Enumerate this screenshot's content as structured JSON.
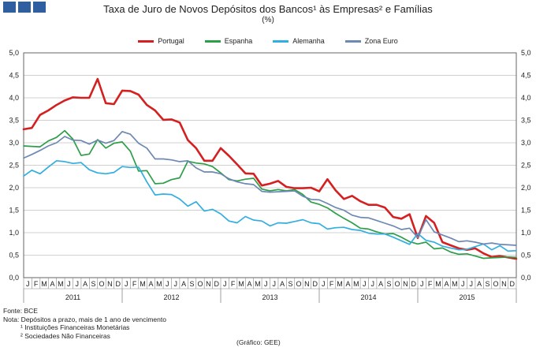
{
  "header": {
    "title": "Taxa de Juro de Novos Depósitos dos Bancos¹ às Empresas² e Famílias",
    "subtitle": "(%)"
  },
  "footer": {
    "source": "Fonte: BCE",
    "note": "Nota: Depósitos a prazo, mais de 1 ano de vencimento",
    "note1": "¹ Instituições Financeiras Monetárias",
    "note2": "² Sociedades Não Financeiras",
    "credit": "(Gráfico: GEE)"
  },
  "colors": {
    "portugal": "#d42020",
    "espanha": "#2e9e48",
    "alemanha": "#33aee0",
    "zona_euro": "#6d88b3",
    "grid": "#d0d0d0",
    "axis": "#666666"
  },
  "chart_data": {
    "type": "line",
    "title": "Taxa de Juro de Novos Depósitos dos Bancos¹ às Empresas² e Famílias",
    "ylim": [
      0,
      5
    ],
    "yticks": [
      "0,0",
      "0,5",
      "1,0",
      "1,5",
      "2,0",
      "2,5",
      "3,0",
      "3,5",
      "4,0",
      "4,5",
      "5,0"
    ],
    "grid": true,
    "legend": "top",
    "month_labels": [
      "J",
      "F",
      "M",
      "A",
      "M",
      "J",
      "J",
      "A",
      "S",
      "O",
      "N",
      "D"
    ],
    "years": [
      "2011",
      "2012",
      "2013",
      "2014",
      "2015"
    ],
    "series": [
      {
        "name": "Portugal",
        "color_key": "portugal",
        "values": [
          3.3,
          3.33,
          3.62,
          3.72,
          3.84,
          3.94,
          4.01,
          4.0,
          4.0,
          4.42,
          3.88,
          3.86,
          4.16,
          4.15,
          4.07,
          3.84,
          3.72,
          3.51,
          3.52,
          3.45,
          3.06,
          2.88,
          2.6,
          2.6,
          2.88,
          2.71,
          2.52,
          2.32,
          2.31,
          2.05,
          2.09,
          2.15,
          2.02,
          1.99,
          1.99,
          2.0,
          1.92,
          2.19,
          1.94,
          1.75,
          1.82,
          1.7,
          1.62,
          1.62,
          1.56,
          1.35,
          1.31,
          1.41,
          0.88,
          1.37,
          1.22,
          0.79,
          0.72,
          0.65,
          0.62,
          0.65,
          0.54,
          0.46,
          0.48,
          0.45,
          0.42
        ]
      },
      {
        "name": "Espanha",
        "color_key": "espanha",
        "values": [
          2.93,
          2.92,
          2.91,
          3.04,
          3.12,
          3.27,
          3.08,
          2.72,
          2.75,
          3.07,
          2.88,
          2.99,
          3.02,
          2.81,
          2.37,
          2.38,
          2.09,
          2.1,
          2.18,
          2.22,
          2.59,
          2.55,
          2.53,
          2.47,
          2.33,
          2.18,
          2.15,
          2.19,
          2.21,
          1.97,
          1.93,
          1.96,
          1.93,
          1.96,
          1.85,
          1.68,
          1.63,
          1.55,
          1.43,
          1.32,
          1.22,
          1.1,
          1.08,
          1.02,
          0.97,
          0.98,
          0.9,
          0.8,
          0.75,
          0.79,
          0.64,
          0.66,
          0.57,
          0.52,
          0.53,
          0.48,
          0.43,
          0.44,
          0.45,
          0.46,
          0.45
        ]
      },
      {
        "name": "Alemanha",
        "color_key": "alemanha",
        "values": [
          2.26,
          2.39,
          2.31,
          2.46,
          2.6,
          2.58,
          2.54,
          2.56,
          2.4,
          2.33,
          2.31,
          2.34,
          2.47,
          2.45,
          2.46,
          2.13,
          1.84,
          1.86,
          1.85,
          1.75,
          1.59,
          1.69,
          1.48,
          1.52,
          1.42,
          1.26,
          1.22,
          1.36,
          1.28,
          1.26,
          1.15,
          1.22,
          1.21,
          1.25,
          1.29,
          1.22,
          1.2,
          1.08,
          1.11,
          1.12,
          1.07,
          1.05,
          0.99,
          0.97,
          0.97,
          0.9,
          0.82,
          0.74,
          0.98,
          0.83,
          0.79,
          0.7,
          0.66,
          0.62,
          0.63,
          0.69,
          0.75,
          0.62,
          0.71,
          0.59,
          0.6
        ]
      },
      {
        "name": "Zona Euro",
        "color_key": "zona_euro",
        "values": [
          2.66,
          2.74,
          2.83,
          2.93,
          3.0,
          3.14,
          3.06,
          3.05,
          2.97,
          3.06,
          2.99,
          3.05,
          3.25,
          3.19,
          2.99,
          2.88,
          2.64,
          2.64,
          2.62,
          2.58,
          2.6,
          2.44,
          2.35,
          2.35,
          2.31,
          2.2,
          2.13,
          2.09,
          2.07,
          1.92,
          1.9,
          1.91,
          1.92,
          1.93,
          1.81,
          1.74,
          1.73,
          1.65,
          1.56,
          1.5,
          1.39,
          1.34,
          1.33,
          1.27,
          1.21,
          1.15,
          1.07,
          1.1,
          0.89,
          1.29,
          1.02,
          0.95,
          0.88,
          0.8,
          0.82,
          0.79,
          0.75,
          0.77,
          0.74,
          0.73,
          0.72
        ]
      }
    ]
  }
}
